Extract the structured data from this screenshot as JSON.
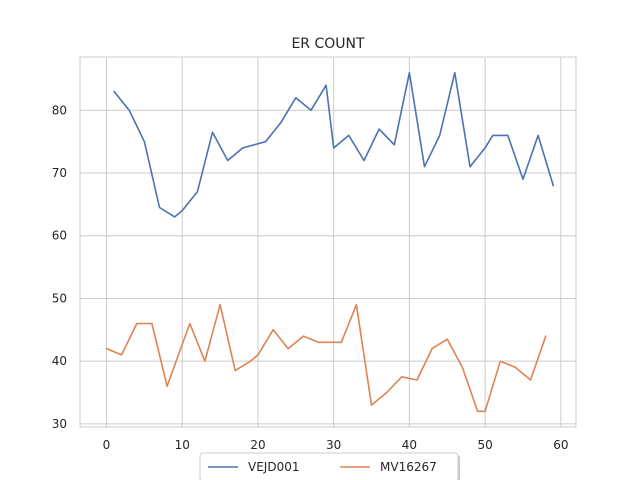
{
  "chart_data": {
    "type": "line",
    "title": "ER COUNT",
    "xlabel": "",
    "ylabel": "",
    "xlim": [
      -3.5,
      62
    ],
    "ylim": [
      29.5,
      88.5
    ],
    "xticks": [
      0,
      10,
      20,
      30,
      40,
      50,
      60
    ],
    "yticks": [
      30,
      40,
      50,
      60,
      70,
      80
    ],
    "grid": true,
    "legend_position": "bottom-center",
    "series": [
      {
        "name": "VEJD001",
        "color": "#4c72b0",
        "x": [
          1,
          3,
          5,
          7,
          9,
          10,
          12,
          14,
          16,
          18,
          21,
          23,
          25,
          27,
          29,
          30,
          32,
          34,
          36,
          38,
          40,
          42,
          44,
          46,
          48,
          50,
          51,
          53,
          55,
          57,
          59
        ],
        "y": [
          83,
          80,
          75,
          64.5,
          63,
          64,
          67,
          76.5,
          72,
          74,
          75,
          78,
          82,
          80,
          84,
          74,
          76,
          72,
          77,
          74.5,
          86,
          71,
          76,
          86,
          71,
          74,
          76,
          76,
          69,
          76,
          68
        ]
      },
      {
        "name": "MV16267",
        "color": "#dd8452",
        "x": [
          0,
          2,
          4,
          6,
          8,
          11,
          13,
          15,
          17,
          19,
          20,
          22,
          24,
          26,
          28,
          31,
          33,
          35,
          37,
          39,
          41,
          43,
          45,
          47,
          49,
          50,
          52,
          54,
          56,
          58
        ],
        "y": [
          42,
          41,
          46,
          46,
          36,
          46,
          40,
          49,
          38.5,
          40,
          41,
          45,
          42,
          44,
          43,
          43,
          49,
          33,
          35,
          37.5,
          37,
          42,
          43.5,
          39,
          32,
          32,
          40,
          39,
          37,
          44
        ]
      }
    ]
  }
}
